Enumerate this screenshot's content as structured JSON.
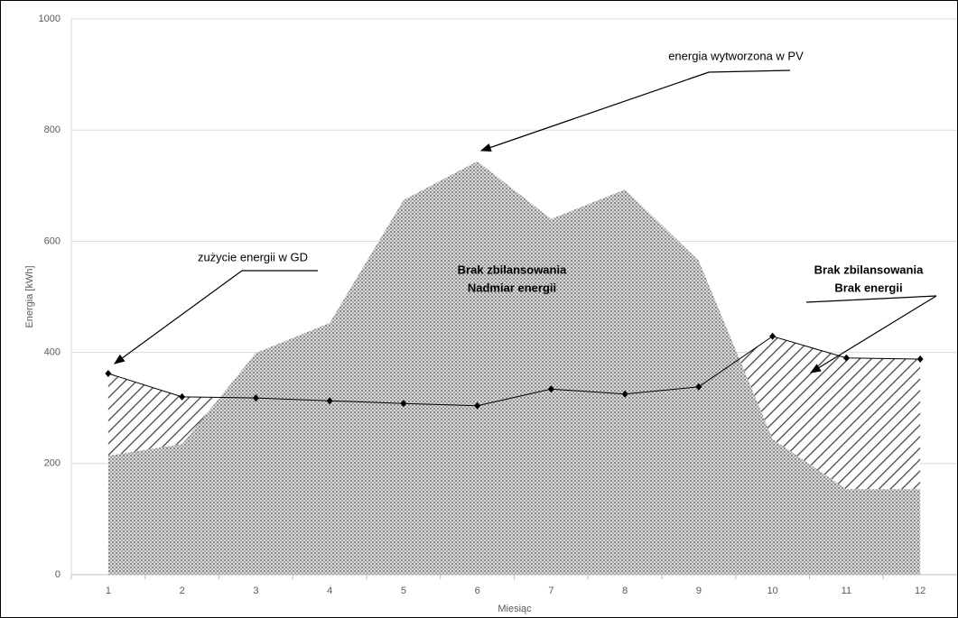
{
  "chart_data": {
    "type": "area-line",
    "xlabel": "Miesiąc",
    "ylabel": "Energia [kWh]",
    "categories": [
      "1",
      "2",
      "3",
      "4",
      "5",
      "6",
      "7",
      "8",
      "9",
      "10",
      "11",
      "12"
    ],
    "series": [
      {
        "kind": "area",
        "color": "#8c8c8c",
        "values": [
          214,
          235,
          399,
          453,
          674,
          744,
          640,
          693,
          565,
          244,
          154,
          154
        ]
      },
      {
        "kind": "line",
        "color": "#000000",
        "values": [
          362,
          320,
          318,
          313,
          308,
          304,
          334,
          325,
          338,
          429,
          390,
          388
        ]
      }
    ],
    "ylim": [
      0,
      1000
    ],
    "yticks": [
      0,
      200,
      400,
      600,
      800,
      1000
    ],
    "grid": true,
    "annotations": [
      {
        "lines": [
          "energia wytworzona w PV"
        ],
        "bold": false
      },
      {
        "lines": [
          "zużycie energii w GD"
        ],
        "bold": false
      },
      {
        "lines": [
          "Brak zbilansowania",
          "Nadmiar energii"
        ],
        "bold": true
      },
      {
        "lines": [
          "Brak zbilansowania",
          "Brak energii"
        ],
        "bold": true
      }
    ]
  }
}
